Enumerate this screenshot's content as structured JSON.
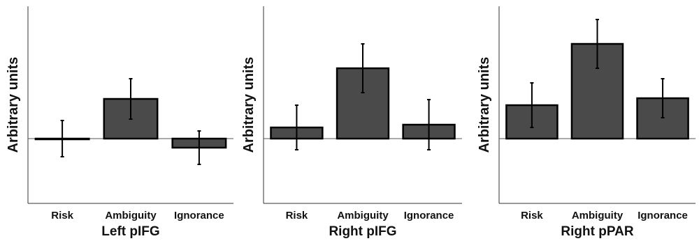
{
  "figure": {
    "bar_color": "#4a4a4a",
    "edge_color": "#000000",
    "axis_color": "#333333"
  },
  "chart_data": [
    {
      "type": "bar",
      "title": "Left pIFG",
      "ylabel": "Arbitrary units",
      "xlabel": "",
      "categories": [
        "Risk",
        "Ambiguity",
        "Ignorance"
      ],
      "values": [
        0.0,
        0.57,
        -0.13
      ],
      "errors": [
        0.26,
        0.29,
        0.24
      ],
      "ylim": [
        -0.93,
        1.9
      ],
      "grid": false,
      "zero_line": true
    },
    {
      "type": "bar",
      "title": "Right pIFG",
      "ylabel": "Arbitrary units",
      "xlabel": "",
      "categories": [
        "Risk",
        "Ambiguity",
        "Ignorance"
      ],
      "values": [
        0.16,
        1.01,
        0.2
      ],
      "errors": [
        0.32,
        0.35,
        0.36
      ],
      "ylim": [
        -0.93,
        1.9
      ],
      "grid": false,
      "zero_line": true
    },
    {
      "type": "bar",
      "title": "Right pPAR",
      "ylabel": "Arbitrary units",
      "xlabel": "",
      "categories": [
        "Risk",
        "Ambiguity",
        "Ignorance"
      ],
      "values": [
        0.48,
        1.36,
        0.58
      ],
      "errors": [
        0.32,
        0.35,
        0.28
      ],
      "ylim": [
        -0.93,
        1.9
      ],
      "grid": false,
      "zero_line": true
    }
  ]
}
